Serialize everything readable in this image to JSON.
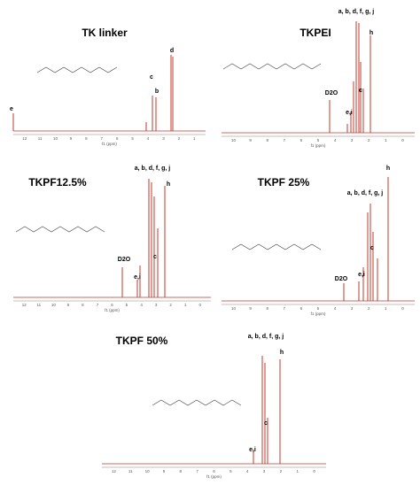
{
  "panels": [
    {
      "title": "TK linker",
      "peak_labels": [
        "e",
        "c",
        "b",
        "d"
      ],
      "axis_label": "f1 (ppm)",
      "ticks": [
        12,
        11,
        10,
        9,
        8,
        7,
        6,
        5,
        4,
        3,
        2,
        1
      ]
    },
    {
      "title": "TKPEI",
      "peak_labels": [
        "a, b, d, f, g, j",
        "h",
        "D2O",
        "c",
        "e,i"
      ],
      "axis_label": "f1 (ppm)",
      "ticks": [
        10,
        9,
        8,
        7,
        6,
        5,
        4,
        3,
        2,
        1,
        0
      ]
    },
    {
      "title": "TKPF12.5%",
      "peak_labels": [
        "a, b, d, f, g, j",
        "h",
        "D2O",
        "c",
        "e,i"
      ],
      "axis_label": "f1 (ppm)",
      "ticks": [
        12,
        11,
        10,
        9,
        8,
        7,
        6,
        5,
        4,
        3,
        2,
        1,
        0
      ]
    },
    {
      "title": "TKPF 25%",
      "peak_labels": [
        "h",
        "a, b, d, f, g, j",
        "c",
        "D2O",
        "e,i"
      ],
      "axis_label": "f1 (ppm)",
      "ticks": [
        10,
        9,
        8,
        7,
        6,
        5,
        4,
        3,
        2,
        1,
        0
      ]
    },
    {
      "title": "TKPF 50%",
      "peak_labels": [
        "a, b, d, f, g, j",
        "h",
        "c",
        "e,i"
      ],
      "axis_label": "f1 (ppm)",
      "ticks": [
        12,
        11,
        10,
        9,
        8,
        7,
        6,
        5,
        4,
        3,
        2,
        1,
        0
      ]
    }
  ]
}
